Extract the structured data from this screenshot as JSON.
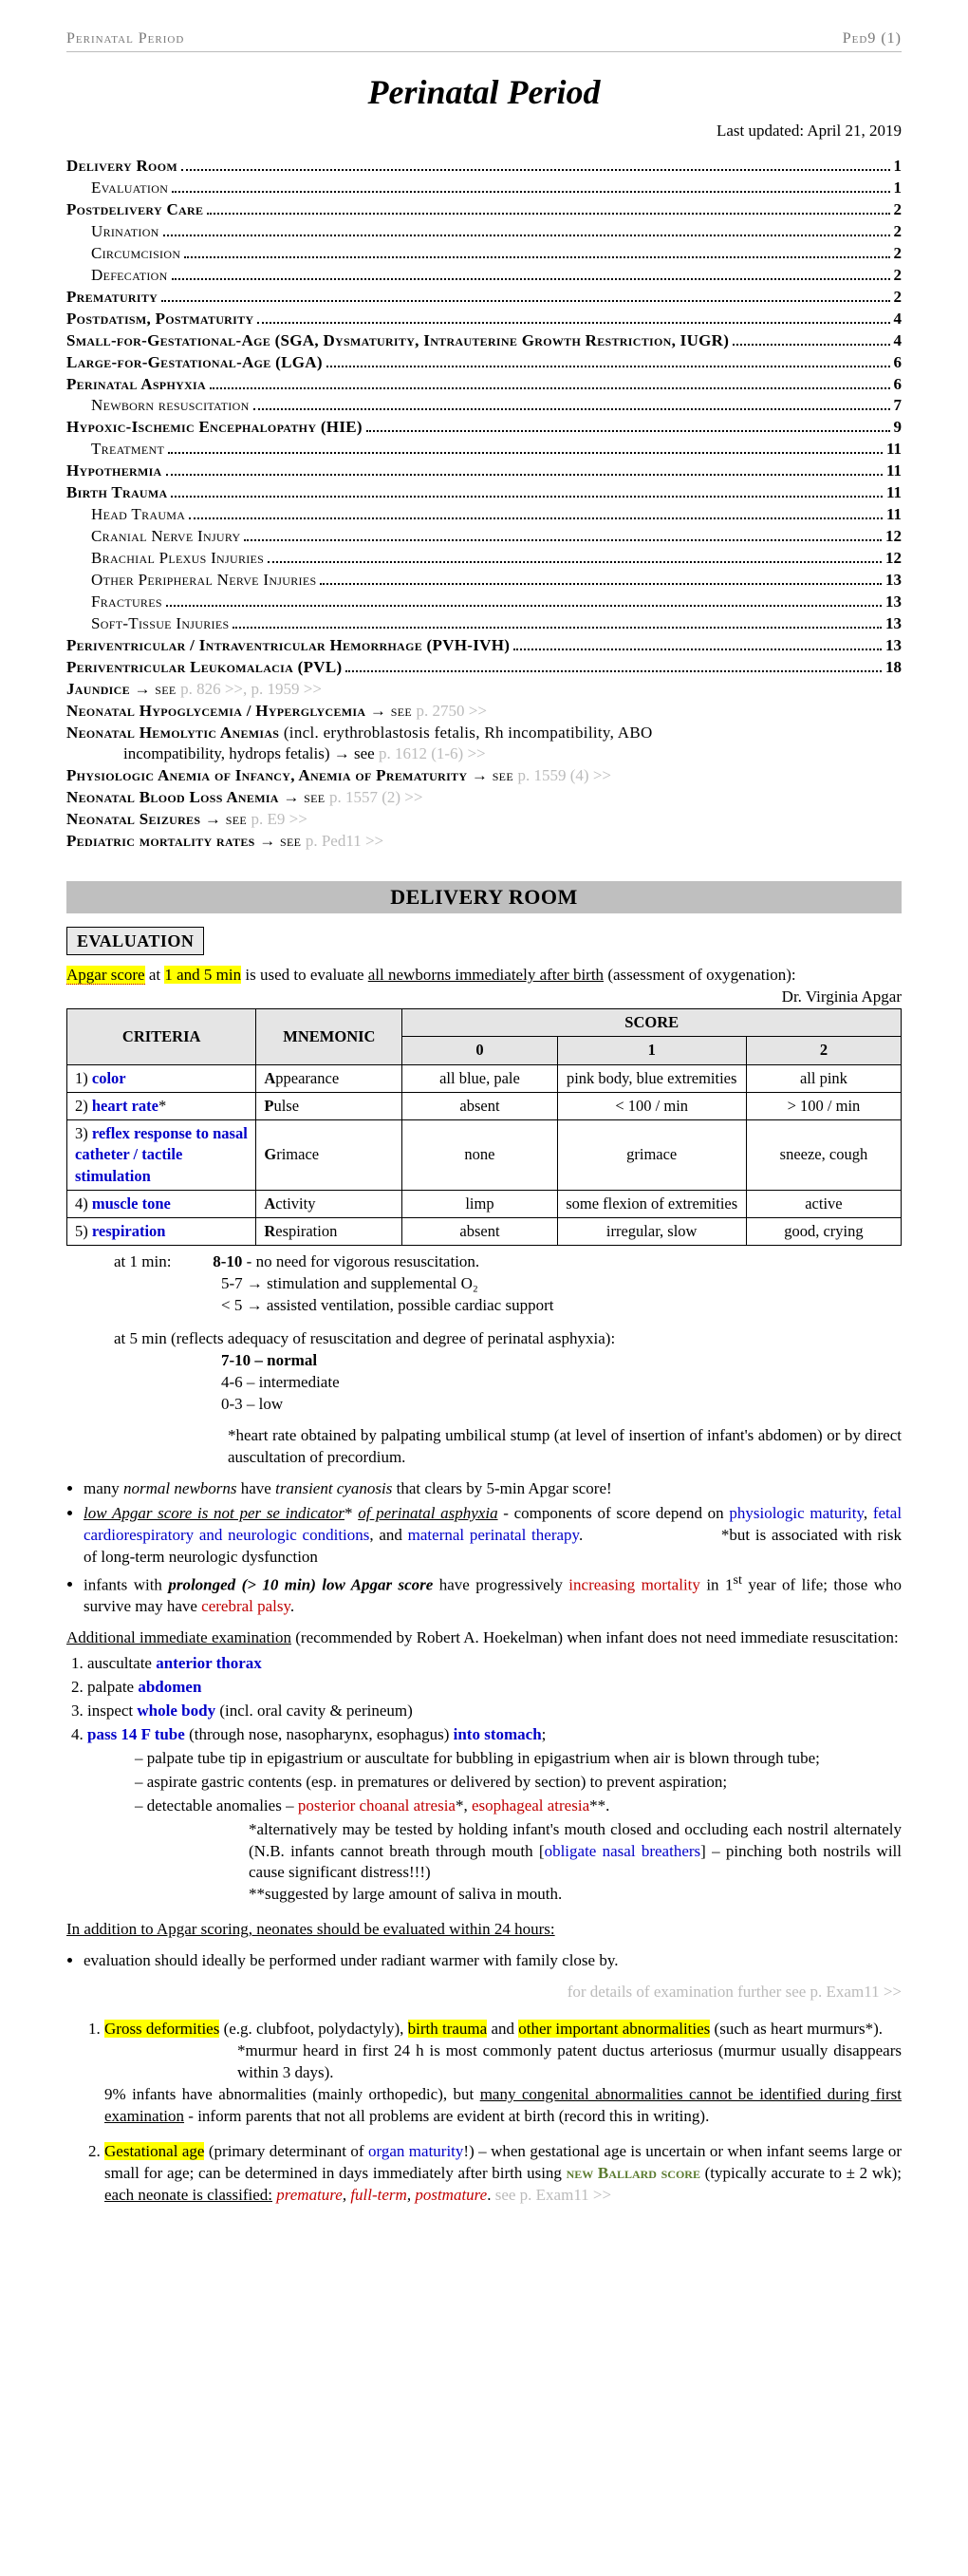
{
  "header": {
    "left": "Perinatal Period",
    "right": "Ped9 (1)"
  },
  "title": "Perinatal Period",
  "updated": "Last updated: April 21, 2019",
  "toc": [
    {
      "l": 1,
      "t": "Delivery Room",
      "p": "1"
    },
    {
      "l": 2,
      "t": "Evaluation",
      "p": "1"
    },
    {
      "l": 1,
      "t": "Postdelivery Care",
      "p": "2"
    },
    {
      "l": 2,
      "t": "Urination",
      "p": "2"
    },
    {
      "l": 2,
      "t": "Circumcision",
      "p": "2"
    },
    {
      "l": 2,
      "t": "Defecation",
      "p": "2"
    },
    {
      "l": 1,
      "t": "Prematurity",
      "p": "2"
    },
    {
      "l": 1,
      "t": "Postdatism, Postmaturity",
      "p": "4"
    },
    {
      "l": 1,
      "t": "Small-for-Gestational-Age (SGA, Dysmaturity, Intrauterine Growth Restriction, IUGR)",
      "p": "4"
    },
    {
      "l": 1,
      "t": "Large-for-Gestational-Age (LGA)",
      "p": "6"
    },
    {
      "l": 1,
      "t": "Perinatal Asphyxia",
      "p": "6"
    },
    {
      "l": 2,
      "t": "Newborn resuscitation",
      "p": "7"
    },
    {
      "l": 1,
      "t": "Hypoxic-Ischemic Encephalopathy (HIE)",
      "p": "9"
    },
    {
      "l": 2,
      "t": "Treatment",
      "p": "11"
    },
    {
      "l": 1,
      "t": "Hypothermia",
      "p": "11"
    },
    {
      "l": 1,
      "t": "Birth Trauma",
      "p": "11"
    },
    {
      "l": 2,
      "t": "Head Trauma",
      "p": "11"
    },
    {
      "l": 2,
      "t": "Cranial Nerve Injury",
      "p": "12"
    },
    {
      "l": 2,
      "t": "Brachial Plexus Injuries",
      "p": "12"
    },
    {
      "l": 2,
      "t": "Other Peripheral Nerve Injuries",
      "p": "13"
    },
    {
      "l": 2,
      "t": "Fractures",
      "p": "13"
    },
    {
      "l": 2,
      "t": "Soft-Tissue Injuries",
      "p": "13"
    },
    {
      "l": 1,
      "t": "Periventricular / Intraventricular Hemorrhage (PVH-IVH)",
      "p": "13"
    },
    {
      "l": 1,
      "t": "Periventricular Leukomalacia (PVL)",
      "p": "18"
    }
  ],
  "toc_ext": [
    {
      "main": "Jaundice",
      "tail": " → see ",
      "ref": "p. 826 >>, p. 1959 >>"
    },
    {
      "main": "Neonatal Hypoglycemia / Hyperglycemia",
      "tail": " → see ",
      "ref": "p. 2750 >>"
    },
    {
      "main": "Neonatal Hemolytic Anemias",
      "plain": " (incl. erythroblastosis fetalis, Rh incompatibility, ABO",
      "cont": "incompatibility, hydrops fetalis) → see ",
      "ref": "p. 1612 (1-6) >>"
    },
    {
      "main": "Physiologic Anemia of Infancy, Anemia of Prematurity",
      "tail": " → see ",
      "ref": "p. 1559 (4) >>"
    },
    {
      "main": "Neonatal Blood Loss Anemia",
      "tail": " → see ",
      "ref": "p. 1557 (2) >>"
    },
    {
      "main": "Neonatal Seizures",
      "tail": " → see ",
      "ref": "p. E9 >>"
    },
    {
      "main": "Pediatric mortality rates",
      "tail": " → see ",
      "ref": "p. Ped11 >>"
    }
  ],
  "section1": "DELIVERY ROOM",
  "subhead1": "EVALUATION",
  "apgar_intro": {
    "a": "Apgar score",
    "b": " at ",
    "c": "1 and 5 min",
    "d": " is used to evaluate ",
    "e": "all newborns immediately after birth",
    "f": " (assessment of oxygenation):",
    "attr": "Dr. Virginia Apgar"
  },
  "apgar": {
    "h_crit": "CRITERIA",
    "h_mnem": "MNEMONIC",
    "h_score": "SCORE",
    "s0": "0",
    "s1": "1",
    "s2": "2",
    "rows": [
      {
        "n": "1)",
        "crit": "color",
        "mnem_b": "A",
        "mnem_r": "ppearance",
        "c0": "all blue, pale",
        "c1": "pink body, blue extremities",
        "c2": "all pink"
      },
      {
        "n": "2)",
        "crit": "heart rate",
        "post": "*",
        "mnem_b": "P",
        "mnem_r": "ulse",
        "c0": "absent",
        "c1": "< 100 / min",
        "c2": "> 100 / min"
      },
      {
        "n": "3)",
        "crit": "reflex response to nasal catheter / tactile stimulation",
        "mnem_b": "G",
        "mnem_r": "rimace",
        "c0": "none",
        "c1": "grimace",
        "c2": "sneeze, cough"
      },
      {
        "n": "4)",
        "crit": "muscle tone",
        "mnem_b": "A",
        "mnem_r": "ctivity",
        "c0": "limp",
        "c1": "some flexion of extremities",
        "c2": "active"
      },
      {
        "n": "5)",
        "crit": "respiration",
        "mnem_b": "R",
        "mnem_r": "espiration",
        "c0": "absent",
        "c1": "irregular, slow",
        "c2": "good, crying"
      }
    ]
  },
  "at1": {
    "lead": "at 1 min:",
    "l1a": "8-10",
    "l1b": " - no need for vigorous resuscitation.",
    "l2": "5-7 → stimulation and supplemental O₂",
    "l3": "< 5 → assisted ventilation, possible cardiac support"
  },
  "at5": {
    "lead": "at 5 min (reflects adequacy of resuscitation and degree of perinatal asphyxia):",
    "l1": "7-10 – normal",
    "l2": "4-6 – intermediate",
    "l3": "0-3 – low"
  },
  "hr_note": "*heart rate obtained by palpating umbilical stump (at level of insertion of infant's abdomen) or by direct auscultation of precordium.",
  "bullets1": {
    "b1a": "many ",
    "b1b": "normal newborns",
    "b1c": " have ",
    "b1d": "transient cyanosis",
    "b1e": " that clears by 5-min Apgar score!",
    "b2a": "low Apgar score is not per se indicator",
    "b2b": "* ",
    "b2c": "of perinatal asphyxia",
    "b2d": " - components of score depend on ",
    "b2e": "physiologic maturity",
    "b2f": ", ",
    "b2g": "fetal cardiorespiratory and neurologic conditions",
    "b2h": ", and ",
    "b2i": "maternal perinatal therapy",
    "b2j": ".",
    "b2note": "*but is associated with risk of long-term neurologic dysfunction",
    "b3a": "infants with ",
    "b3b": "prolonged (> 10 min) low Apgar score",
    "b3c": " have progressively ",
    "b3d": "increasing mortality",
    "b3e": " in 1",
    "b3f": "st",
    "b3g": " year of life; those who survive may have ",
    "b3h": "cerebral palsy",
    "b3i": "."
  },
  "addl": {
    "lead": "Additional immediate examination",
    "tail": " (recommended by Robert A. Hoekelman) when infant does not need immediate resuscitation:",
    "i1a": "auscultate ",
    "i1b": "anterior thorax",
    "i2a": "palpate ",
    "i2b": "abdomen",
    "i3a": "inspect ",
    "i3b": "whole body",
    "i3c": " (incl. oral cavity & perineum)",
    "i4a": "pass 14 F tube",
    "i4b": " (through nose, nasopharynx, esophagus) ",
    "i4c": "into stomach",
    "i4d": ";",
    "d1": "palpate tube tip in epigastrium or auscultate for bubbling in epigastrium when air is blown through tube;",
    "d2": "aspirate gastric contents (esp. in prematures or delivered by section) to prevent aspiration;",
    "d3a": "detectable anomalies – ",
    "d3b": "posterior choanal atresia",
    "d3c": "*, ",
    "d3d": "esophageal atresia",
    "d3e": "**.",
    "n1a": "*alternatively may be tested by holding infant's mouth closed and occluding each nostril alternately (N.B. infants cannot breath through mouth [",
    "n1b": "obligate nasal breathers",
    "n1c": "] – pinching both nostrils will cause significant distress!!!)",
    "n2": "**suggested by large amount of saliva in mouth."
  },
  "within24": {
    "head": "In addition to Apgar scoring, neonates should be evaluated within 24 hours:",
    "b1": "evaluation should ideally be performed under radiant warmer with family close by.",
    "ref": "for details of examination further see p. Exam11 >>"
  },
  "eval24": {
    "i1a": "Gross deformities",
    "i1b": " (e.g. clubfoot, polydactyly), ",
    "i1c": "birth trauma",
    "i1d": " and ",
    "i1e": "other important abnormalities",
    "i1f": " (such as heart murmurs*).",
    "i1n": "*murmur heard in first 24 h is most commonly patent ductus arteriosus (murmur usually disappears within 3 days).",
    "i1g": "9% infants have abnormalities (mainly orthopedic), but ",
    "i1h": "many congenital abnormalities cannot be identified during first examination",
    "i1i": " - inform parents that not all problems are evident at birth (record this in writing).",
    "i2a": "Gestational age",
    "i2b": " (primary determinant of ",
    "i2c": "organ maturity",
    "i2d": "!) – when gestational age is uncertain or when infant seems large or small for age; can be determined in days immediately after birth using ",
    "i2e": "new Ballard score",
    "i2f": " (typically accurate to ± 2 wk); ",
    "i2g": "each neonate is classified:",
    "i2h": " ",
    "i2i": "premature",
    "i2j": ", ",
    "i2k": "full-term",
    "i2l": ", ",
    "i2m": "postmature",
    "i2n": ". ",
    "i2ref": "see p. Exam11 >>"
  }
}
